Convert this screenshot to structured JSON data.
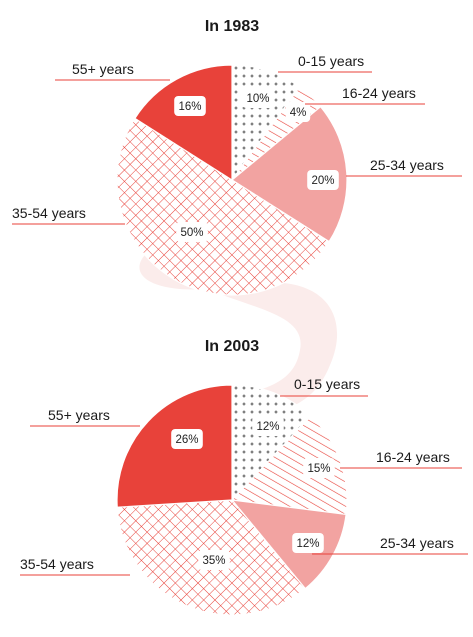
{
  "chart_data": [
    {
      "type": "pie",
      "title": "In 1983",
      "slices": [
        {
          "name": "0-15 years",
          "value": 10,
          "label": "10%",
          "fill": "dots"
        },
        {
          "name": "16-24 years",
          "value": 4,
          "label": "4%",
          "fill": "diag"
        },
        {
          "name": "25-34 years",
          "value": 20,
          "label": "20%",
          "fill": "pink"
        },
        {
          "name": "35-54 years",
          "value": 50,
          "label": "50%",
          "fill": "grid"
        },
        {
          "name": "55+ years",
          "value": 16,
          "label": "16%",
          "fill": "red"
        }
      ]
    },
    {
      "type": "pie",
      "title": "In 2003",
      "slices": [
        {
          "name": "0-15 years",
          "value": 12,
          "label": "12%",
          "fill": "dots"
        },
        {
          "name": "16-24 years",
          "value": 15,
          "label": "15%",
          "fill": "diag"
        },
        {
          "name": "25-34 years",
          "value": 12,
          "label": "12%",
          "fill": "pink"
        },
        {
          "name": "35-54 years",
          "value": 35,
          "label": "35%",
          "fill": "grid"
        },
        {
          "name": "55+ years",
          "value": 26,
          "label": "26%",
          "fill": "red"
        }
      ]
    }
  ],
  "colors": {
    "red": "#e8423a",
    "pink": "#f2a3a1",
    "pattern_line": "#e8423a",
    "dots": "#333333",
    "leader": "#e8423a",
    "watermark": "#fbeceb"
  }
}
